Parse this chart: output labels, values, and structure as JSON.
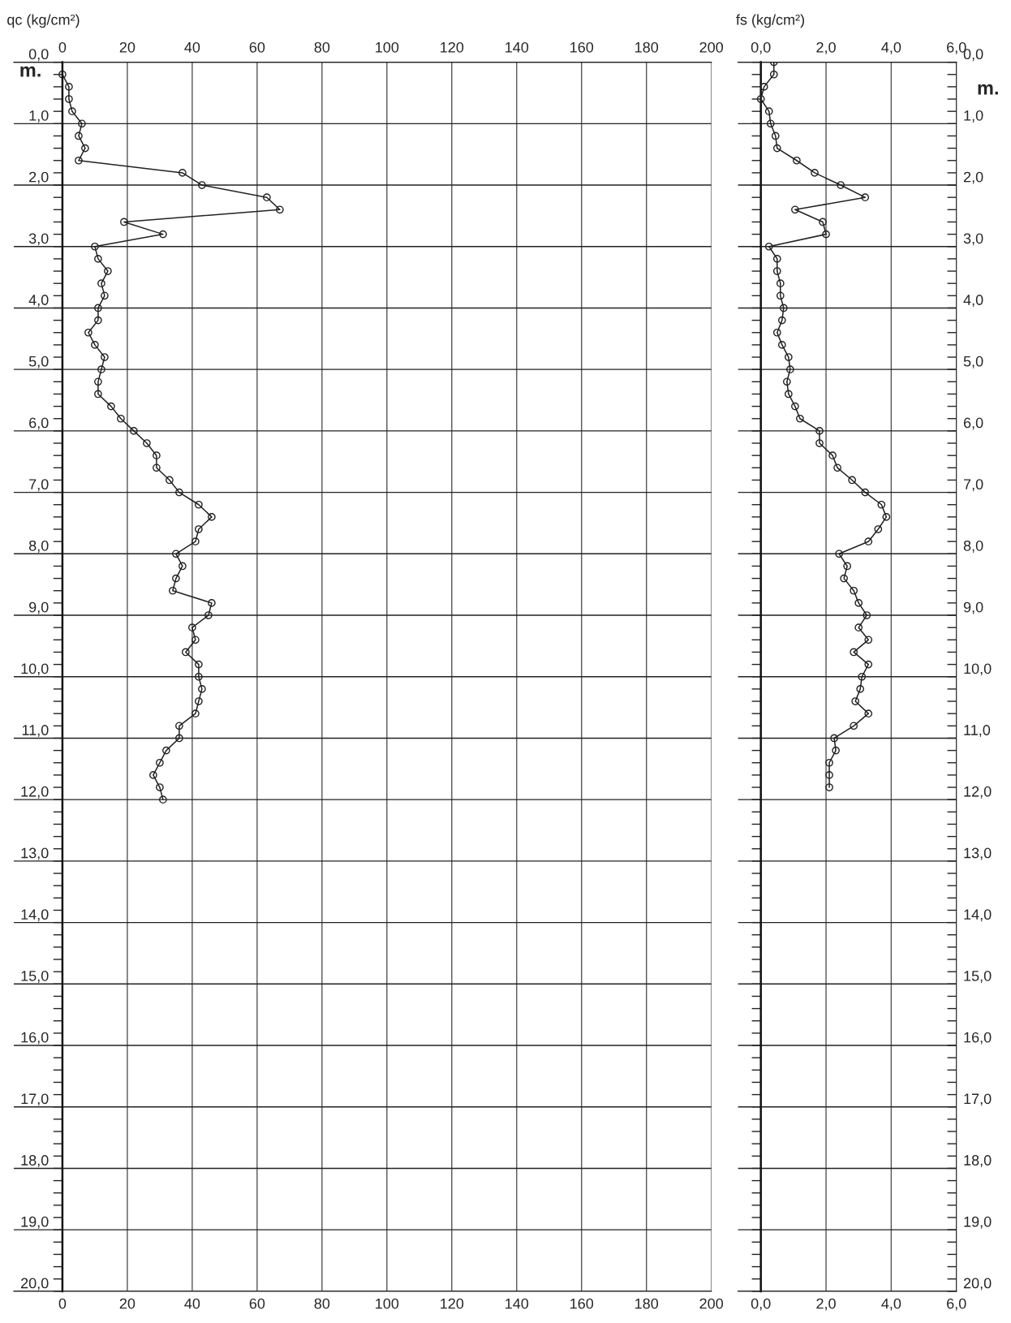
{
  "chart_data": [
    {
      "type": "line",
      "xlabel": "qc (kg/cm²)",
      "ylabel": "m.",
      "marker": "circle",
      "grid": true,
      "xlim": [
        -15,
        200
      ],
      "xticks": [
        0,
        20,
        40,
        60,
        80,
        100,
        120,
        140,
        160,
        180,
        200
      ],
      "x2lim": [
        -15,
        200
      ],
      "x2ticks": [
        0,
        20,
        40,
        60,
        80,
        100,
        120,
        140,
        160,
        180,
        200
      ],
      "ylim": [
        20,
        0
      ],
      "yticks": [
        {
          "value": 0,
          "label": "0,0"
        },
        {
          "value": 1,
          "label": "1,0"
        },
        {
          "value": 2,
          "label": "2,0"
        },
        {
          "value": 3,
          "label": "3,0"
        },
        {
          "value": 4,
          "label": "4,0"
        },
        {
          "value": 5,
          "label": "5,0"
        },
        {
          "value": 6,
          "label": "6,0"
        },
        {
          "value": 7,
          "label": "7,0"
        },
        {
          "value": 8,
          "label": "8,0"
        },
        {
          "value": 9,
          "label": "9,0"
        },
        {
          "value": 10,
          "label": "10,0"
        },
        {
          "value": 11,
          "label": "11,0"
        },
        {
          "value": 12,
          "label": "12,0"
        },
        {
          "value": 13,
          "label": "13,0"
        },
        {
          "value": 14,
          "label": "14,0"
        },
        {
          "value": 15,
          "label": "15,0"
        },
        {
          "value": 16,
          "label": "16,0"
        },
        {
          "value": 17,
          "label": "17,0"
        },
        {
          "value": 18,
          "label": "18,0"
        },
        {
          "value": 19,
          "label": "19,0"
        },
        {
          "value": 20,
          "label": "20,0"
        },
        {
          "value": 0.2,
          "label": null
        },
        {
          "value": 0.4,
          "label": null
        },
        {
          "value": 0.6,
          "label": null
        },
        {
          "value": 0.8,
          "label": null
        },
        {
          "value": 1.2,
          "label": null
        },
        {
          "value": 1.4,
          "label": null
        },
        {
          "value": 1.6,
          "label": null
        },
        {
          "value": 1.8,
          "label": null
        },
        {
          "value": 2.2,
          "label": null
        },
        {
          "value": 2.4,
          "label": null
        },
        {
          "value": 2.6,
          "label": null
        },
        {
          "value": 2.8,
          "label": null
        },
        {
          "value": 3.2,
          "label": null
        },
        {
          "value": 3.4,
          "label": null
        },
        {
          "value": 3.6,
          "label": null
        },
        {
          "value": 3.8,
          "label": null
        },
        {
          "value": 4.2,
          "label": null
        },
        {
          "value": 4.4,
          "label": null
        },
        {
          "value": 4.6,
          "label": null
        },
        {
          "value": 4.8,
          "label": null
        },
        {
          "value": 5.2,
          "label": null
        },
        {
          "value": 5.4,
          "label": null
        },
        {
          "value": 5.6,
          "label": null
        },
        {
          "value": 5.8,
          "label": null
        },
        {
          "value": 6.2,
          "label": null
        },
        {
          "value": 6.4,
          "label": null
        },
        {
          "value": 6.6,
          "label": null
        },
        {
          "value": 6.8,
          "label": null
        },
        {
          "value": 7.2,
          "label": null
        },
        {
          "value": 7.4,
          "label": null
        },
        {
          "value": 7.6,
          "label": null
        },
        {
          "value": 7.8,
          "label": null
        },
        {
          "value": 8.2,
          "label": null
        },
        {
          "value": 8.4,
          "label": null
        },
        {
          "value": 8.6,
          "label": null
        },
        {
          "value": 8.8,
          "label": null
        },
        {
          "value": 9.2,
          "label": null
        },
        {
          "value": 9.4,
          "label": null
        },
        {
          "value": 9.6,
          "label": null
        },
        {
          "value": 9.8,
          "label": null
        },
        {
          "value": 10.2,
          "label": null
        },
        {
          "value": 10.4,
          "label": null
        },
        {
          "value": 10.6,
          "label": null
        },
        {
          "value": 10.8,
          "label": null
        },
        {
          "value": 11.2,
          "label": null
        },
        {
          "value": 11.4,
          "label": null
        },
        {
          "value": 11.6,
          "label": null
        },
        {
          "value": 11.8,
          "label": null
        },
        {
          "value": 12.2,
          "label": null
        },
        {
          "value": 12.4,
          "label": null
        },
        {
          "value": 12.6,
          "label": null
        },
        {
          "value": 12.8,
          "label": null
        },
        {
          "value": 13.2,
          "label": null
        },
        {
          "value": 13.4,
          "label": null
        },
        {
          "value": 13.6,
          "label": null
        },
        {
          "value": 13.8,
          "label": null
        },
        {
          "value": 14.2,
          "label": null
        },
        {
          "value": 14.4,
          "label": null
        },
        {
          "value": 14.6,
          "label": null
        },
        {
          "value": 14.8,
          "label": null
        },
        {
          "value": 15.2,
          "label": null
        },
        {
          "value": 15.4,
          "label": null
        },
        {
          "value": 15.6,
          "label": null
        },
        {
          "value": 15.8,
          "label": null
        },
        {
          "value": 16.2,
          "label": null
        },
        {
          "value": 16.4,
          "label": null
        },
        {
          "value": 16.6,
          "label": null
        },
        {
          "value": 16.8,
          "label": null
        },
        {
          "value": 17.2,
          "label": null
        },
        {
          "value": 17.4,
          "label": null
        },
        {
          "value": 17.6,
          "label": null
        },
        {
          "value": 17.8,
          "label": null
        },
        {
          "value": 18.2,
          "label": null
        },
        {
          "value": 18.4,
          "label": null
        },
        {
          "value": 18.6,
          "label": null
        },
        {
          "value": 18.8,
          "label": null
        },
        {
          "value": 19.2,
          "label": null
        },
        {
          "value": 19.4,
          "label": null
        },
        {
          "value": 19.6,
          "label": null
        },
        {
          "value": 19.8,
          "label": null
        }
      ],
      "series": [
        {
          "color": "#222222",
          "x": [
            0,
            2,
            2,
            3,
            6,
            5,
            7,
            5,
            37,
            43,
            63,
            67,
            19,
            31,
            10,
            11,
            14,
            12,
            13,
            11,
            11,
            8,
            10,
            13,
            12,
            11,
            11,
            15,
            18,
            22,
            26,
            29,
            29,
            33,
            36,
            42,
            46,
            42,
            41,
            35,
            37,
            35,
            34,
            46,
            45,
            40,
            41,
            38,
            42,
            42,
            43,
            42,
            41,
            36,
            36,
            32,
            30,
            28,
            30,
            31
          ],
          "values": [
            0.2,
            0.4,
            0.6,
            0.8,
            1.0,
            1.2,
            1.4,
            1.6,
            1.8,
            2.0,
            2.2,
            2.4,
            2.6,
            2.8,
            3.0,
            3.2,
            3.4,
            3.6,
            3.8,
            4.0,
            4.2,
            4.4,
            4.6,
            4.8,
            5.0,
            5.2,
            5.4,
            5.6,
            5.8,
            6.0,
            6.2,
            6.4,
            6.6,
            6.8,
            7.0,
            7.2,
            7.4,
            7.6,
            7.8,
            8.0,
            8.2,
            8.4,
            8.6,
            8.8,
            9.0,
            9.2,
            9.4,
            9.6,
            9.8,
            10.0,
            10.2,
            10.4,
            10.6,
            10.8,
            11.0,
            11.2,
            11.4,
            11.6,
            11.8,
            12.0
          ]
        }
      ]
    },
    {
      "type": "line",
      "xlabel": "fs (kg/cm²)",
      "y2label": "m.",
      "marker": "circle",
      "grid": true,
      "xlim": [
        -0.7,
        6
      ],
      "xticks": [
        {
          "value": 0,
          "label": "0,0"
        },
        {
          "value": 2,
          "label": "2,0"
        },
        {
          "value": 4,
          "label": "4,0"
        },
        {
          "value": 6,
          "label": "6,0"
        }
      ],
      "x2lim": [
        -0.7,
        6
      ],
      "x2ticks": [
        {
          "value": 0,
          "label": "0,0"
        },
        {
          "value": 2,
          "label": "2,0"
        },
        {
          "value": 4,
          "label": "4,0"
        },
        {
          "value": 6,
          "label": "6,0"
        }
      ],
      "y2lim": [
        20,
        0
      ],
      "y2ticks": [
        {
          "value": 0,
          "label": "0,0"
        },
        {
          "value": 1,
          "label": "1,0"
        },
        {
          "value": 2,
          "label": "2,0"
        },
        {
          "value": 3,
          "label": "3,0"
        },
        {
          "value": 4,
          "label": "4,0"
        },
        {
          "value": 5,
          "label": "5,0"
        },
        {
          "value": 6,
          "label": "6,0"
        },
        {
          "value": 7,
          "label": "7,0"
        },
        {
          "value": 8,
          "label": "8,0"
        },
        {
          "value": 9,
          "label": "9,0"
        },
        {
          "value": 10,
          "label": "10,0"
        },
        {
          "value": 11,
          "label": "11,0"
        },
        {
          "value": 12,
          "label": "12,0"
        },
        {
          "value": 13,
          "label": "13,0"
        },
        {
          "value": 14,
          "label": "14,0"
        },
        {
          "value": 15,
          "label": "15,0"
        },
        {
          "value": 16,
          "label": "16,0"
        },
        {
          "value": 17,
          "label": "17,0"
        },
        {
          "value": 18,
          "label": "18,0"
        },
        {
          "value": 19,
          "label": "19,0"
        },
        {
          "value": 20,
          "label": "20,0"
        },
        {
          "value": 0.2,
          "label": null
        },
        {
          "value": 0.4,
          "label": null
        },
        {
          "value": 0.6,
          "label": null
        },
        {
          "value": 0.8,
          "label": null
        },
        {
          "value": 1.2,
          "label": null
        },
        {
          "value": 1.4,
          "label": null
        },
        {
          "value": 1.6,
          "label": null
        },
        {
          "value": 1.8,
          "label": null
        },
        {
          "value": 2.2,
          "label": null
        },
        {
          "value": 2.4,
          "label": null
        },
        {
          "value": 2.6,
          "label": null
        },
        {
          "value": 2.8,
          "label": null
        },
        {
          "value": 3.2,
          "label": null
        },
        {
          "value": 3.4,
          "label": null
        },
        {
          "value": 3.6,
          "label": null
        },
        {
          "value": 3.8,
          "label": null
        },
        {
          "value": 4.2,
          "label": null
        },
        {
          "value": 4.4,
          "label": null
        },
        {
          "value": 4.6,
          "label": null
        },
        {
          "value": 4.8,
          "label": null
        },
        {
          "value": 5.2,
          "label": null
        },
        {
          "value": 5.4,
          "label": null
        },
        {
          "value": 5.6,
          "label": null
        },
        {
          "value": 5.8,
          "label": null
        },
        {
          "value": 6.2,
          "label": null
        },
        {
          "value": 6.4,
          "label": null
        },
        {
          "value": 6.6,
          "label": null
        },
        {
          "value": 6.8,
          "label": null
        },
        {
          "value": 7.2,
          "label": null
        },
        {
          "value": 7.4,
          "label": null
        },
        {
          "value": 7.6,
          "label": null
        },
        {
          "value": 7.8,
          "label": null
        },
        {
          "value": 8.2,
          "label": null
        },
        {
          "value": 8.4,
          "label": null
        },
        {
          "value": 8.6,
          "label": null
        },
        {
          "value": 8.8,
          "label": null
        },
        {
          "value": 9.2,
          "label": null
        },
        {
          "value": 9.4,
          "label": null
        },
        {
          "value": 9.6,
          "label": null
        },
        {
          "value": 9.8,
          "label": null
        },
        {
          "value": 10.2,
          "label": null
        },
        {
          "value": 10.4,
          "label": null
        },
        {
          "value": 10.6,
          "label": null
        },
        {
          "value": 10.8,
          "label": null
        },
        {
          "value": 11.2,
          "label": null
        },
        {
          "value": 11.4,
          "label": null
        },
        {
          "value": 11.6,
          "label": null
        },
        {
          "value": 11.8,
          "label": null
        },
        {
          "value": 12.2,
          "label": null
        },
        {
          "value": 12.4,
          "label": null
        },
        {
          "value": 12.6,
          "label": null
        },
        {
          "value": 12.8,
          "label": null
        },
        {
          "value": 13.2,
          "label": null
        },
        {
          "value": 13.4,
          "label": null
        },
        {
          "value": 13.6,
          "label": null
        },
        {
          "value": 13.8,
          "label": null
        },
        {
          "value": 14.2,
          "label": null
        },
        {
          "value": 14.4,
          "label": null
        },
        {
          "value": 14.6,
          "label": null
        },
        {
          "value": 14.8,
          "label": null
        },
        {
          "value": 15.2,
          "label": null
        },
        {
          "value": 15.4,
          "label": null
        },
        {
          "value": 15.6,
          "label": null
        },
        {
          "value": 15.8,
          "label": null
        },
        {
          "value": 16.2,
          "label": null
        },
        {
          "value": 16.4,
          "label": null
        },
        {
          "value": 16.6,
          "label": null
        },
        {
          "value": 16.8,
          "label": null
        },
        {
          "value": 17.2,
          "label": null
        },
        {
          "value": 17.4,
          "label": null
        },
        {
          "value": 17.6,
          "label": null
        },
        {
          "value": 17.8,
          "label": null
        },
        {
          "value": 18.2,
          "label": null
        },
        {
          "value": 18.4,
          "label": null
        },
        {
          "value": 18.6,
          "label": null
        },
        {
          "value": 18.8,
          "label": null
        },
        {
          "value": 19.2,
          "label": null
        },
        {
          "value": 19.4,
          "label": null
        },
        {
          "value": 19.6,
          "label": null
        },
        {
          "value": 19.8,
          "label": null
        }
      ],
      "series": [
        {
          "color": "#222222",
          "axis": "y2",
          "x": [
            0.4,
            0.4,
            0.1,
            0.0,
            0.25,
            0.3,
            0.45,
            0.5,
            1.1,
            1.65,
            2.45,
            3.2,
            1.05,
            1.9,
            2.0,
            0.25,
            0.5,
            0.5,
            0.6,
            0.6,
            0.7,
            0.65,
            0.5,
            0.65,
            0.85,
            0.9,
            0.8,
            0.85,
            1.05,
            1.2,
            1.8,
            1.8,
            2.2,
            2.35,
            2.8,
            3.2,
            3.7,
            3.85,
            3.6,
            3.3,
            2.4,
            2.65,
            2.55,
            2.85,
            3.0,
            3.25,
            3.0,
            3.3,
            2.85,
            3.3,
            3.1,
            3.05,
            2.9,
            3.3,
            2.85,
            2.25,
            2.3,
            2.1,
            2.1,
            2.1
          ],
          "values": [
            0.0,
            0.2,
            0.4,
            0.6,
            0.8,
            1.0,
            1.2,
            1.4,
            1.6,
            1.8,
            2.0,
            2.2,
            2.4,
            2.6,
            2.8,
            3.0,
            3.2,
            3.4,
            3.6,
            3.8,
            4.0,
            4.2,
            4.4,
            4.6,
            4.8,
            5.0,
            5.2,
            5.4,
            5.6,
            5.8,
            6.0,
            6.2,
            6.4,
            6.6,
            6.8,
            7.0,
            7.2,
            7.4,
            7.6,
            7.8,
            8.0,
            8.2,
            8.4,
            8.6,
            8.8,
            9.0,
            9.2,
            9.4,
            9.6,
            9.8,
            10.0,
            10.2,
            10.4,
            10.6,
            10.8,
            11.0,
            11.2,
            11.4,
            11.6,
            11.8
          ]
        }
      ]
    }
  ]
}
